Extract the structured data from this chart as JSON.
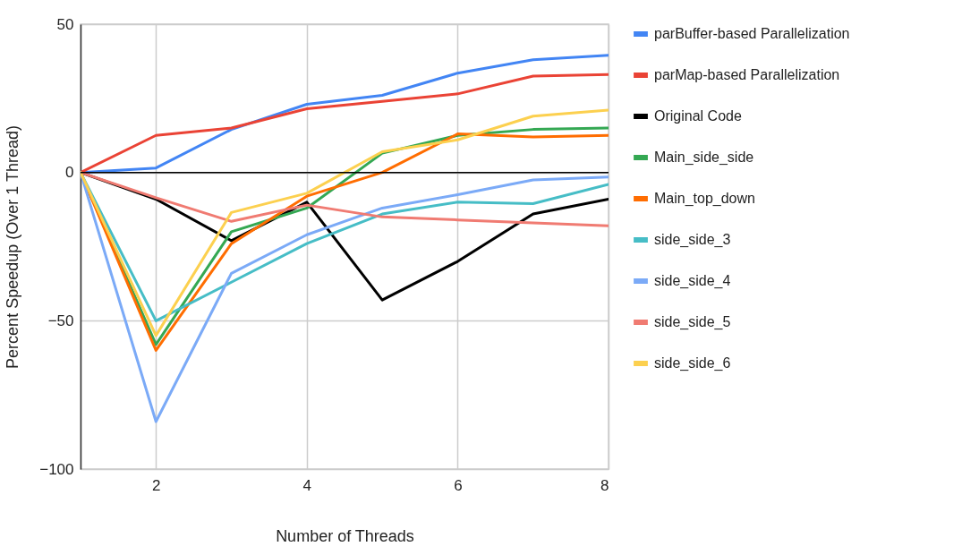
{
  "chart_data": {
    "type": "line",
    "xlabel": "Number of Threads",
    "ylabel": "Percent Speedup (Over 1 Thread)",
    "x": [
      1,
      2,
      3,
      4,
      5,
      6,
      7,
      8
    ],
    "series": [
      {
        "name": "parBuffer-based Parallelization",
        "color": "#4285f4",
        "values": [
          0,
          1.5,
          14.5,
          23,
          26,
          33.5,
          38,
          39.5
        ]
      },
      {
        "name": "parMap-based Parallelization",
        "color": "#ea4335",
        "values": [
          0,
          12.5,
          15,
          21.5,
          24,
          26.5,
          32.5,
          33
        ]
      },
      {
        "name": "Original Code",
        "color": "#000000",
        "values": [
          0,
          -9,
          -23,
          -10,
          -43,
          -30,
          -14,
          -9
        ]
      },
      {
        "name": "Main_side_side",
        "color": "#34a853",
        "values": [
          0,
          -58,
          -20,
          -12,
          6.5,
          12.5,
          14.5,
          15
        ]
      },
      {
        "name": "Main_top_down",
        "color": "#ff6d01",
        "values": [
          0,
          -60,
          -24,
          -8,
          0,
          13,
          12,
          12.5
        ]
      },
      {
        "name": "side_side_3",
        "color": "#46bdc6",
        "values": [
          0,
          -50,
          -37,
          -24,
          -14,
          -10,
          -10.5,
          -4
        ]
      },
      {
        "name": "side_side_4",
        "color": "#7baaf7",
        "values": [
          0,
          -84,
          -34,
          -21,
          -12,
          -7.5,
          -2.5,
          -1.5
        ]
      },
      {
        "name": "side_side_5",
        "color": "#f07b72",
        "values": [
          0,
          -8.5,
          -16.5,
          -11,
          -15,
          -16,
          -17,
          -18
        ]
      },
      {
        "name": "side_side_6",
        "color": "#fcd04f",
        "values": [
          0,
          -55,
          -13.5,
          -7,
          7,
          11,
          19,
          21
        ]
      }
    ],
    "xlim": [
      1,
      8
    ],
    "xticks": [
      2,
      4,
      6,
      8
    ],
    "ylim": [
      -100,
      50
    ],
    "yticks": [
      -100,
      -50,
      0,
      50
    ],
    "grid": true,
    "legend": "top right",
    "line_style": "solid",
    "ref_lines": [
      {
        "axis": "y",
        "value": 0,
        "color": "#000000"
      }
    ]
  }
}
